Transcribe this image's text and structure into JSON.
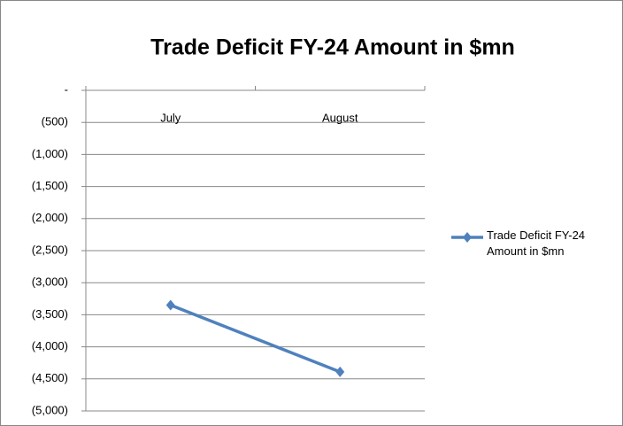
{
  "chart_data": {
    "type": "line",
    "title": "Trade Deficit FY-24 Amount in $mn",
    "categories": [
      "July",
      "August"
    ],
    "series": [
      {
        "name": "Trade Deficit FY-24 Amount in $mn",
        "color": "#4f81bd",
        "values": [
          -3350,
          -4390
        ]
      }
    ],
    "ylim": [
      -5000,
      0
    ],
    "yticks": [
      {
        "value": 0,
        "label": "-"
      },
      {
        "value": -500,
        "label": "(500)"
      },
      {
        "value": -1000,
        "label": "(1,000)"
      },
      {
        "value": -1500,
        "label": "(1,500)"
      },
      {
        "value": -2000,
        "label": "(2,000)"
      },
      {
        "value": -2500,
        "label": "(2,500)"
      },
      {
        "value": -3000,
        "label": "(3,000)"
      },
      {
        "value": -3500,
        "label": "(3,500)"
      },
      {
        "value": -4000,
        "label": "(4,000)"
      },
      {
        "value": -4500,
        "label": "(4,500)"
      },
      {
        "value": -5000,
        "label": "(5,000)"
      }
    ],
    "grid": true,
    "legend": "right"
  }
}
